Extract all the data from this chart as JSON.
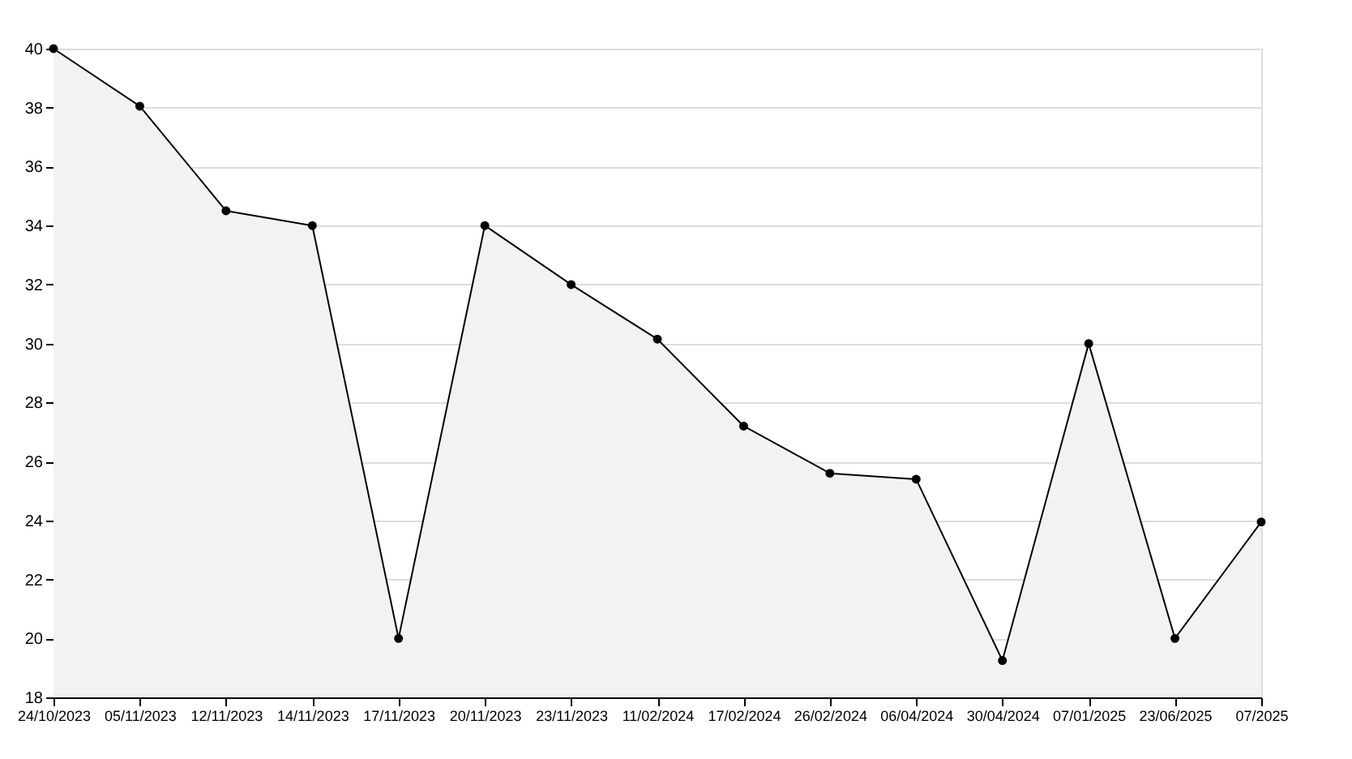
{
  "chart_data": {
    "type": "area",
    "categories": [
      "24/10/2023",
      "05/11/2023",
      "12/11/2023",
      "14/11/2023",
      "17/11/2023",
      "20/11/2023",
      "23/11/2023",
      "11/02/2024",
      "17/02/2024",
      "26/02/2024",
      "06/04/2024",
      "30/04/2024",
      "07/01/2025",
      "23/06/2025",
      "07/2025"
    ],
    "series": [
      {
        "color": "#000000",
        "values": [
          40,
          38.05,
          34.5,
          34,
          20,
          34,
          32,
          30.15,
          27.2,
          25.6,
          25.4,
          19.25,
          30,
          20,
          23.95
        ]
      }
    ],
    "ylim": [
      18,
      40
    ],
    "yticks": [
      18,
      20,
      22,
      24,
      26,
      28,
      30,
      32,
      34,
      36,
      38,
      40
    ],
    "grid": "y",
    "marker": "circle",
    "line_style": "solid",
    "legend": false
  }
}
